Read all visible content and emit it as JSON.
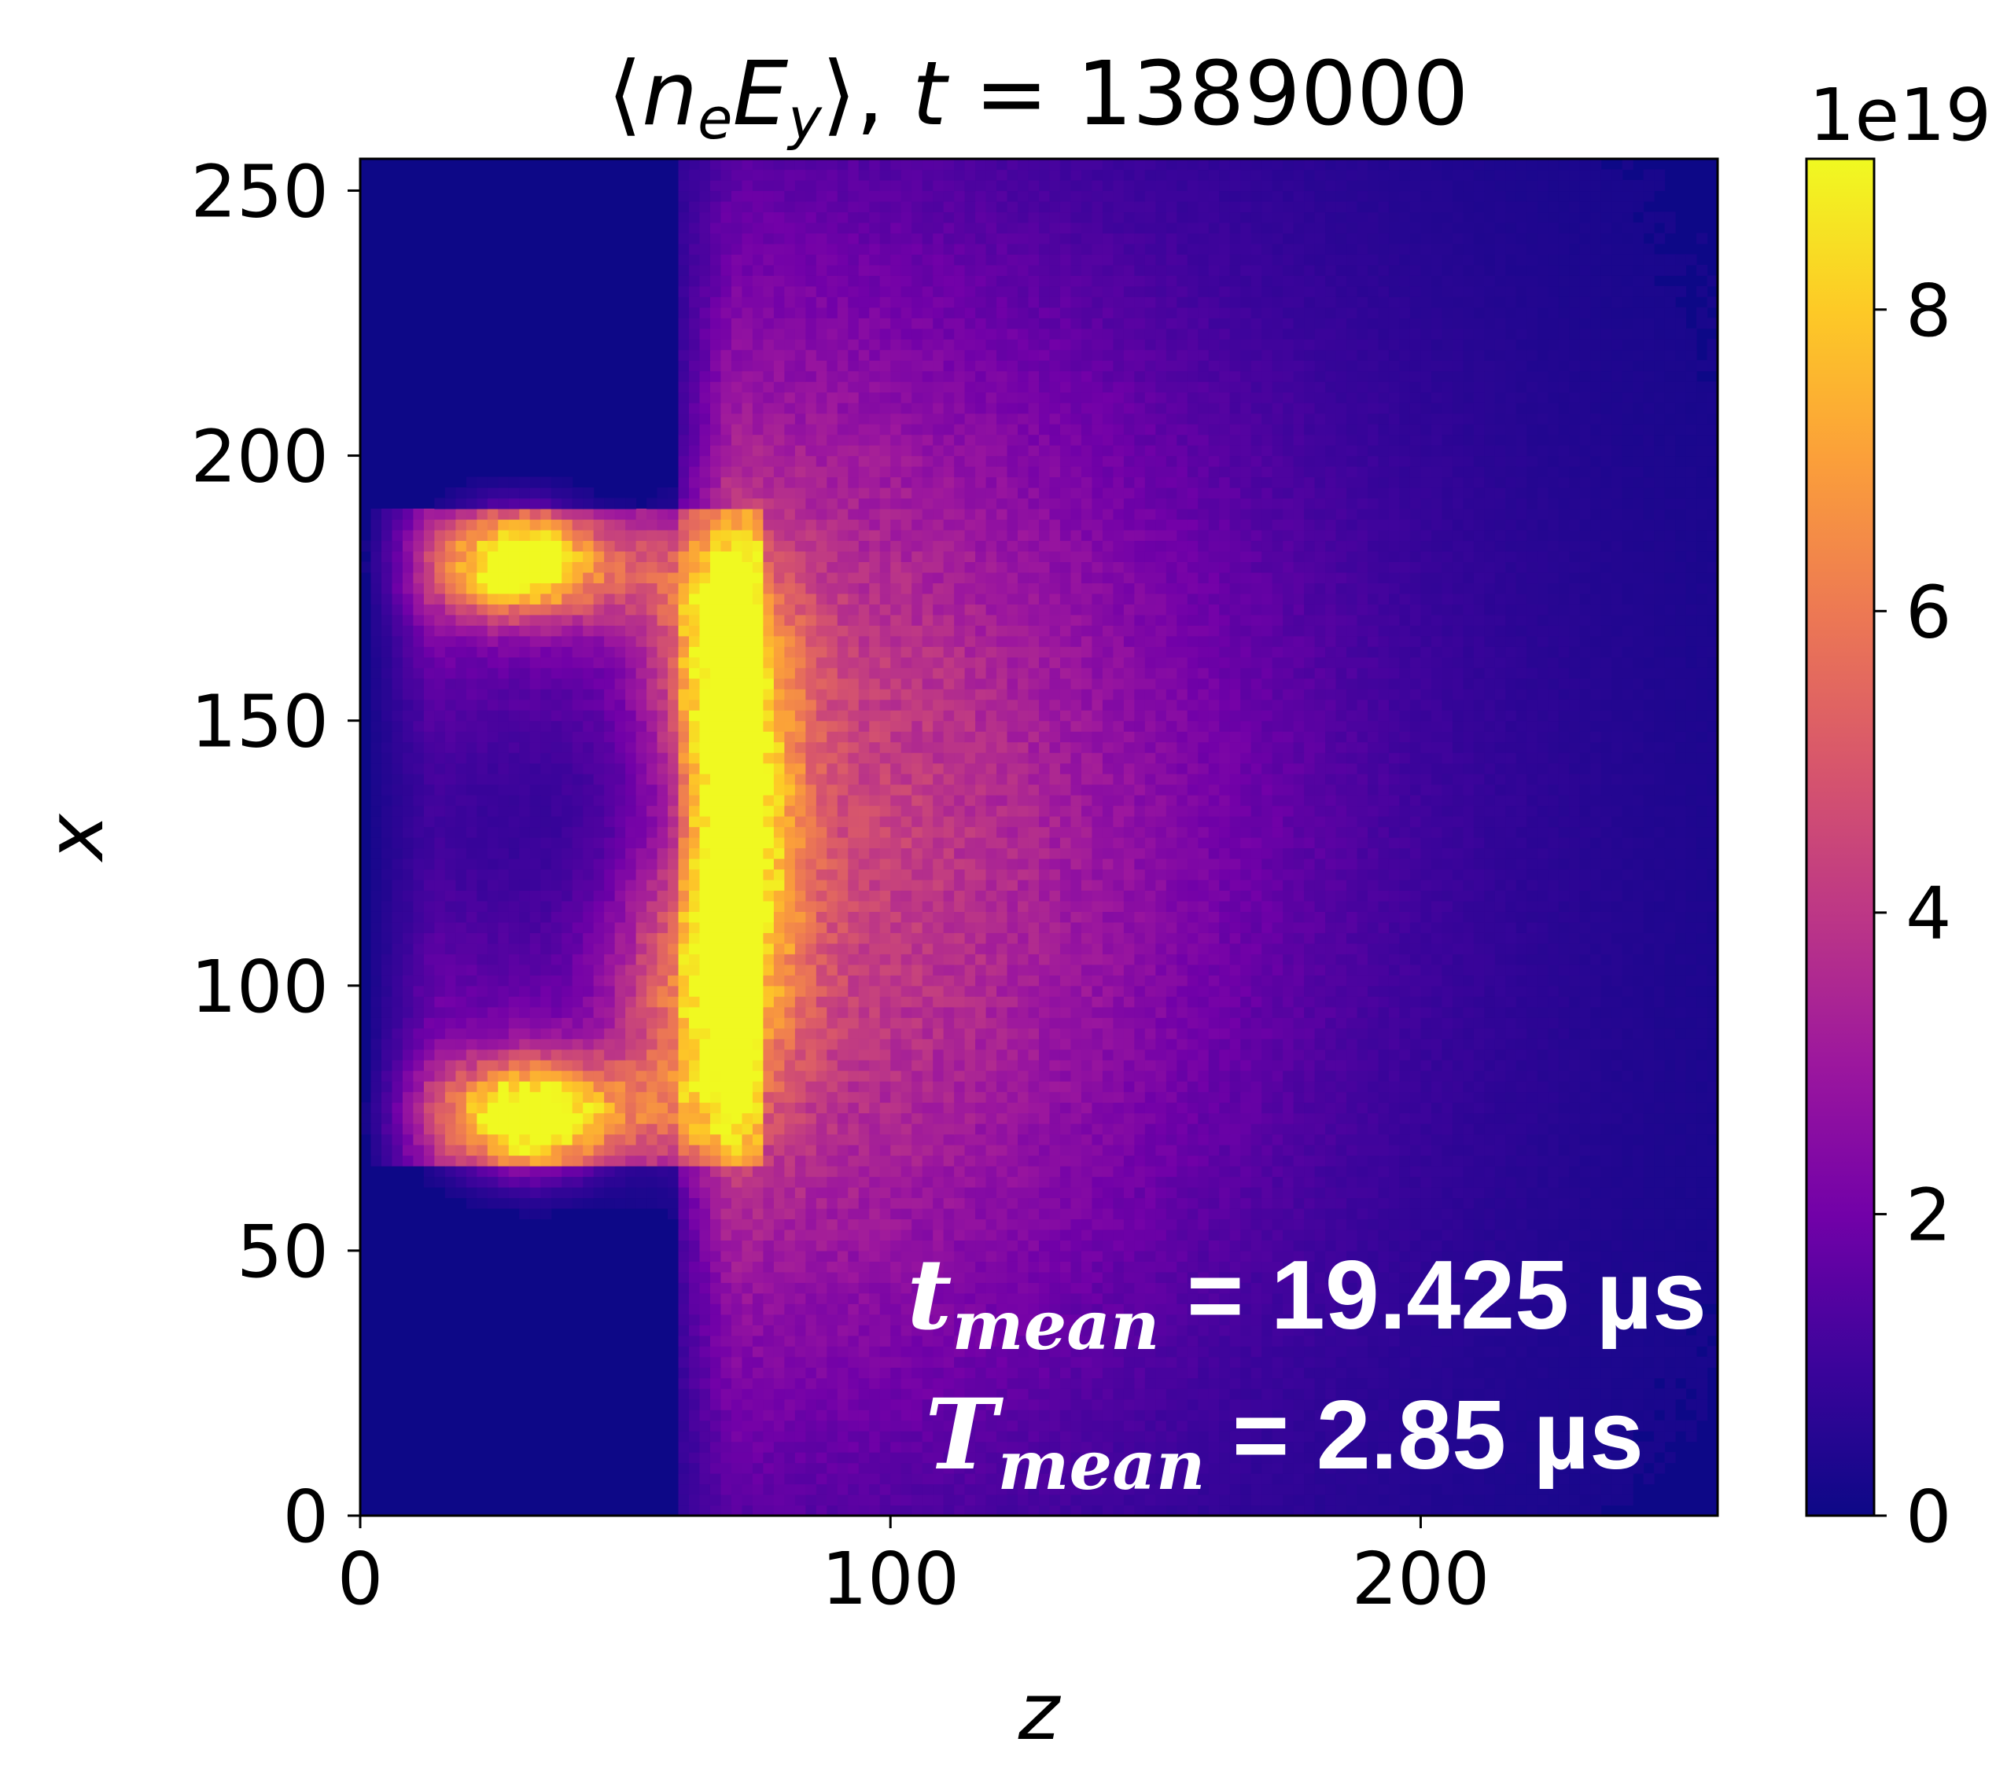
{
  "chart_data": {
    "type": "heatmap",
    "title": {
      "open_bracket": "⟨",
      "var_n": "n",
      "sub_e": "e",
      "var_E": "E",
      "sub_y": "y",
      "close_bracket": "⟩, ",
      "var_t": "t",
      "equals_value": " = 1389000"
    },
    "xlabel": "z",
    "ylabel": "x",
    "xlim": [
      0,
      256
    ],
    "ylim": [
      0,
      256
    ],
    "x_ticks": [
      {
        "value": 0,
        "label": "0"
      },
      {
        "value": 100,
        "label": "100"
      },
      {
        "value": 200,
        "label": "200"
      }
    ],
    "y_ticks": [
      {
        "value": 0,
        "label": "0"
      },
      {
        "value": 50,
        "label": "50"
      },
      {
        "value": 100,
        "label": "100"
      },
      {
        "value": 150,
        "label": "150"
      },
      {
        "value": 200,
        "label": "200"
      },
      {
        "value": 250,
        "label": "250"
      }
    ],
    "colormap": "plasma",
    "colorbar": {
      "min": 0,
      "max": 9,
      "scale_label": "1e19",
      "ticks": [
        {
          "value": 0,
          "label": "0"
        },
        {
          "value": 2,
          "label": "2"
        },
        {
          "value": 4,
          "label": "4"
        },
        {
          "value": 6,
          "label": "6"
        },
        {
          "value": 8,
          "label": "8"
        }
      ]
    },
    "features": [
      {
        "z": 30,
        "x": 180,
        "value": 9
      },
      {
        "z": 32,
        "x": 75,
        "value": 9
      },
      {
        "z": 68,
        "x": 160,
        "value": 7
      },
      {
        "z": 65,
        "x": 100,
        "value": 7
      }
    ],
    "annotations": [
      {
        "var": "t",
        "sub": "mean",
        "text": " = 19.425 µs"
      },
      {
        "var": "T",
        "sub": "mean",
        "text": " = 2.85 µs"
      }
    ]
  }
}
